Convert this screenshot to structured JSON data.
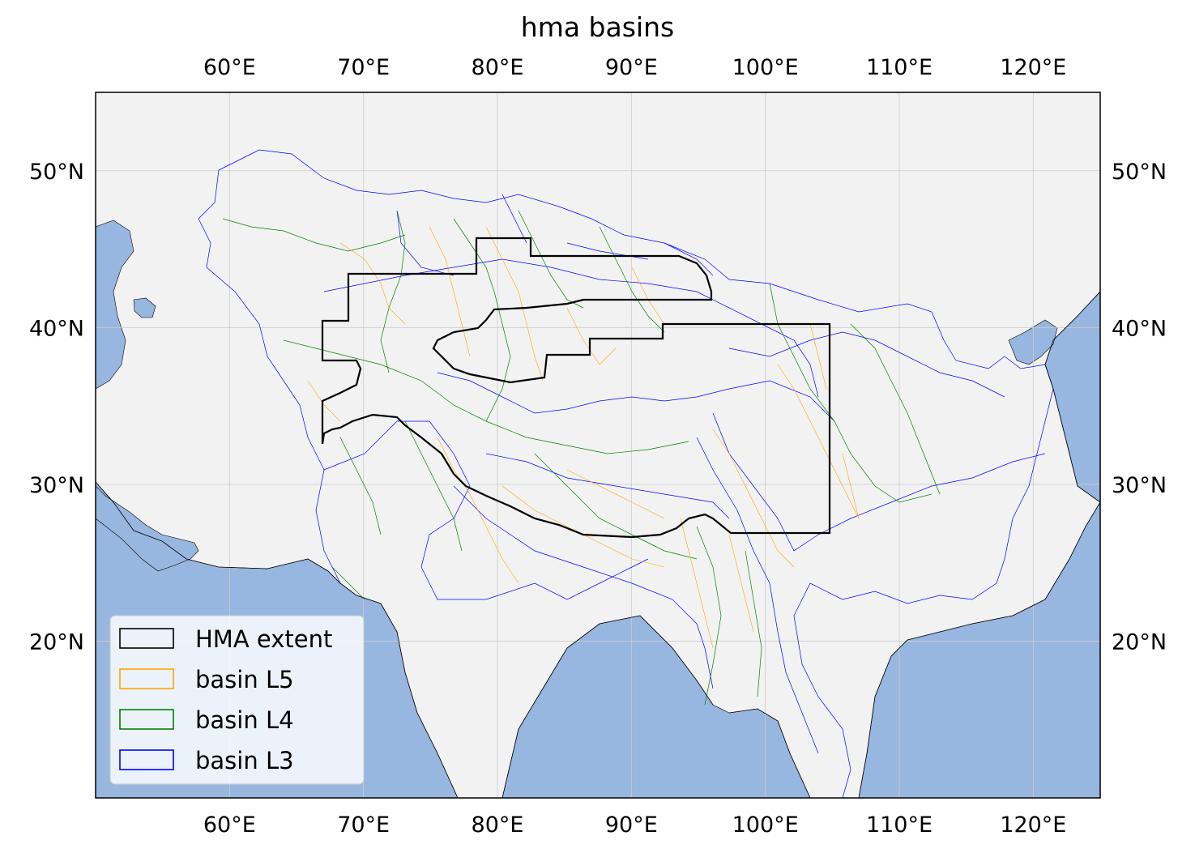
{
  "title": "hma basins",
  "map": {
    "lon_range": [
      50,
      125
    ],
    "lat_range": [
      10,
      55
    ],
    "projection": "plate carree",
    "lon_ticks": [
      {
        "value": 60,
        "label": "60°E"
      },
      {
        "value": 70,
        "label": "70°E"
      },
      {
        "value": 80,
        "label": "80°E"
      },
      {
        "value": 90,
        "label": "90°E"
      },
      {
        "value": 100,
        "label": "100°E"
      },
      {
        "value": 110,
        "label": "110°E"
      },
      {
        "value": 120,
        "label": "120°E"
      }
    ],
    "lat_ticks": [
      {
        "value": 20,
        "label": "20°N"
      },
      {
        "value": 30,
        "label": "30°N"
      },
      {
        "value": 40,
        "label": "40°N"
      },
      {
        "value": 50,
        "label": "50°N"
      }
    ],
    "gridlines": true,
    "colors": {
      "land": "#f2f2f2",
      "ocean": "#97b6e0",
      "hma_extent": "#000000",
      "basin_l5": "#ffa500",
      "basin_l4": "#008000",
      "basin_l3": "#0000ff",
      "grid": "#cccccc"
    }
  },
  "legend": {
    "placement": "lower-left",
    "items": [
      {
        "label": "HMA extent",
        "color": "#000000"
      },
      {
        "label": "basin L5",
        "color": "#ffa500"
      },
      {
        "label": "basin L4",
        "color": "#008000"
      },
      {
        "label": "basin L3",
        "color": "#0000ff"
      }
    ]
  }
}
